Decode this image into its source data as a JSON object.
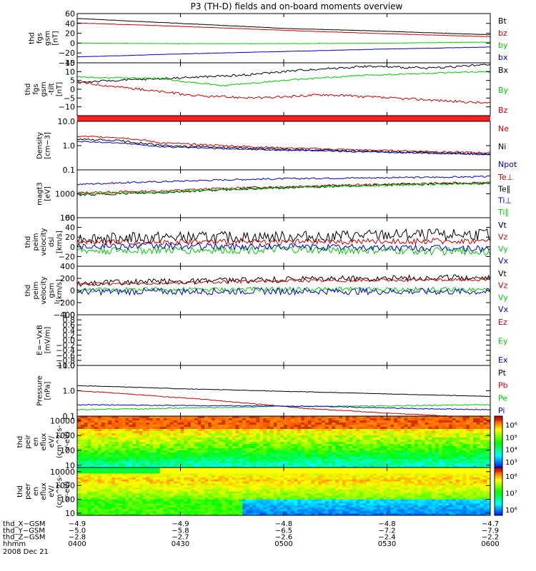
{
  "title": "P3 (TH-D) fields and on-board moments overview",
  "colors": {
    "black": "#000000",
    "red": "#cc0000",
    "green": "#00cc00",
    "blue": "#0000cc",
    "sep": "#ff2020"
  },
  "chart_data": [
    {
      "type": "line",
      "name": "fgs_btotal",
      "ylabel_lines": [
        "thd",
        "fgs",
        "gsm",
        "[nT]"
      ],
      "ylim": [
        -40,
        60
      ],
      "ticks": [
        "60",
        "40",
        "20",
        "0",
        "−20",
        "−40"
      ],
      "tick_values": [
        60,
        40,
        20,
        0,
        -20,
        -40
      ],
      "legend": [
        "Bt",
        "bz",
        "by",
        "bx"
      ],
      "legend_colors": [
        "black",
        "red",
        "green",
        "blue"
      ],
      "series": [
        {
          "name": "Bt",
          "color": "black",
          "x": [
            0,
            0.25,
            0.5,
            0.75,
            1
          ],
          "y": [
            50,
            40,
            30,
            24,
            17
          ],
          "noise": 0.3
        },
        {
          "name": "bz",
          "color": "red",
          "x": [
            0,
            0.25,
            0.5,
            0.75,
            1
          ],
          "y": [
            41,
            34,
            26,
            19,
            13
          ],
          "noise": 0.3
        },
        {
          "name": "by",
          "color": "green",
          "x": [
            0,
            0.25,
            0.5,
            0.75,
            1
          ],
          "y": [
            0,
            -1,
            -1,
            0,
            2
          ],
          "noise": 0.3
        },
        {
          "name": "bx",
          "color": "blue",
          "x": [
            0,
            0.25,
            0.5,
            0.75,
            1
          ],
          "y": [
            -28,
            -22,
            -17,
            -12,
            -8
          ],
          "noise": 0.3
        }
      ]
    },
    {
      "type": "line",
      "name": "fgs_comp",
      "ylabel_lines": [
        "thd",
        "fgs",
        "gsm",
        "-tilt",
        "[nT]"
      ],
      "ylim": [
        -15,
        15
      ],
      "ticks": [
        "15",
        "10",
        "5",
        "0",
        "−5",
        "−10"
      ],
      "tick_values": [
        15,
        10,
        5,
        0,
        -5,
        -10
      ],
      "legend": [
        "Bx",
        "By",
        "Bz"
      ],
      "legend_colors": [
        "black",
        "green",
        "red"
      ],
      "series": [
        {
          "name": "Bx",
          "color": "black",
          "x": [
            0,
            0.2,
            0.4,
            0.55,
            0.7,
            0.85,
            1
          ],
          "y": [
            4,
            6,
            8,
            11,
            13,
            12,
            14
          ],
          "noise": 0.6
        },
        {
          "name": "By",
          "color": "green",
          "x": [
            0,
            0.2,
            0.35,
            0.5,
            0.7,
            0.85,
            1
          ],
          "y": [
            7,
            6,
            2,
            5,
            8,
            9,
            10
          ],
          "noise": 0.4
        },
        {
          "name": "Bz",
          "color": "red",
          "x": [
            0,
            0.15,
            0.3,
            0.45,
            0.6,
            0.75,
            0.85,
            1
          ],
          "y": [
            4,
            0,
            -4,
            -5,
            -3,
            -5,
            -6,
            -8
          ],
          "noise": 0.7
        }
      ]
    },
    {
      "type": "line",
      "name": "density",
      "ylabel_lines": [
        "Density",
        "[cm−3]"
      ],
      "ylim": [
        0.1,
        10
      ],
      "log": true,
      "ticks": [
        "10.0",
        "1.0",
        "0.1"
      ],
      "tick_values": [
        10,
        1,
        0.1
      ],
      "legend": [
        "Ne",
        "Ni",
        "Npot"
      ],
      "legend_colors": [
        "red",
        "black",
        "blue"
      ],
      "series": [
        {
          "name": "Ne",
          "color": "red",
          "x": [
            0,
            0.1,
            0.2,
            0.35,
            0.5,
            0.7,
            1
          ],
          "y": [
            2.4,
            2.2,
            1.3,
            1.0,
            0.8,
            0.65,
            0.5
          ],
          "noise": 0.08
        },
        {
          "name": "Ni",
          "color": "black",
          "x": [
            0,
            0.1,
            0.2,
            0.35,
            0.5,
            0.7,
            1
          ],
          "y": [
            1.8,
            1.6,
            1.0,
            0.85,
            0.7,
            0.58,
            0.45
          ],
          "noise": 0.1
        },
        {
          "name": "Npot",
          "color": "blue",
          "x": [
            0,
            0.1,
            0.2,
            0.35,
            0.5,
            0.7,
            1
          ],
          "y": [
            1.5,
            1.3,
            0.9,
            0.75,
            0.65,
            0.55,
            0.42
          ],
          "noise": 0.06
        }
      ]
    },
    {
      "type": "line",
      "name": "temperature",
      "ylabel_lines": [
        "magt3",
        "[eV]"
      ],
      "ylim": [
        100,
        10000
      ],
      "log": true,
      "ticks": [
        "1000",
        "100"
      ],
      "tick_values": [
        1000,
        100
      ],
      "legend": [
        "Te⊥",
        "Te∥",
        "Ti⊥",
        "Ti∥"
      ],
      "legend_colors": [
        "red",
        "black",
        "blue",
        "green"
      ],
      "series": [
        {
          "name": "Te⊥",
          "color": "red",
          "x": [
            0,
            0.2,
            0.4,
            0.6,
            0.8,
            1
          ],
          "y": [
            1100,
            1300,
            1800,
            2200,
            2600,
            3000
          ],
          "noise": 0.1
        },
        {
          "name": "Te∥",
          "color": "black",
          "x": [
            0,
            0.2,
            0.4,
            0.6,
            0.8,
            1
          ],
          "y": [
            900,
            1100,
            1600,
            2000,
            2500,
            2800
          ],
          "noise": 0.1
        },
        {
          "name": "Ti⊥",
          "color": "blue",
          "x": [
            0,
            0.2,
            0.4,
            0.6,
            0.8,
            1
          ],
          "y": [
            2500,
            3200,
            4000,
            4500,
            4800,
            5200
          ],
          "noise": 0.08
        },
        {
          "name": "Ti∥",
          "color": "green",
          "x": [
            0,
            0.2,
            0.4,
            0.6,
            0.8,
            1
          ],
          "y": [
            1000,
            1200,
            1600,
            2000,
            2400,
            2800
          ],
          "noise": 0.1
        }
      ]
    },
    {
      "type": "line",
      "name": "peim_velocity",
      "ylabel_lines": [
        "thd",
        "peim",
        "velocity",
        "dsl",
        "[km/s]"
      ],
      "ylim": [
        -40,
        60
      ],
      "ticks": [
        "60",
        "40",
        "20",
        "0",
        "−20"
      ],
      "tick_values": [
        60,
        40,
        20,
        0,
        -20
      ],
      "legend": [
        "Vt",
        "Vz",
        "Vy",
        "Vx"
      ],
      "legend_colors": [
        "black",
        "red",
        "green",
        "blue"
      ],
      "series": [
        {
          "name": "Vt",
          "color": "black",
          "x": [
            0,
            0.5,
            0.75,
            1
          ],
          "y": [
            18,
            20,
            24,
            26
          ],
          "noise": 12
        },
        {
          "name": "Vz",
          "color": "red",
          "x": [
            0,
            0.5,
            1
          ],
          "y": [
            10,
            10,
            12
          ],
          "noise": 6
        },
        {
          "name": "Vy",
          "color": "green",
          "x": [
            0,
            0.5,
            1
          ],
          "y": [
            -8,
            -6,
            -10
          ],
          "noise": 8
        },
        {
          "name": "Vx",
          "color": "blue",
          "x": [
            0,
            0.5,
            1
          ],
          "y": [
            2,
            0,
            -4
          ],
          "noise": 7
        }
      ]
    },
    {
      "type": "line",
      "name": "peim_velocity_gsm",
      "ylabel_lines": [
        "thd",
        "peim",
        "velocity",
        "gsm",
        "[km/s]"
      ],
      "ylim": [
        -400,
        400
      ],
      "ticks": [
        "400",
        "200",
        "0",
        "−200",
        "−400"
      ],
      "tick_values": [
        400,
        200,
        0,
        -200,
        -400
      ],
      "legend": [
        "Vt",
        "Vz",
        "Vy",
        "Vx"
      ],
      "legend_colors": [
        "black",
        "red",
        "green",
        "blue"
      ],
      "series": [
        {
          "name": "Vt",
          "color": "black",
          "x": [
            0,
            0.5,
            1
          ],
          "y": [
            120,
            180,
            220
          ],
          "noise": 50
        },
        {
          "name": "Vz",
          "color": "red",
          "x": [
            0,
            0.5,
            1
          ],
          "y": [
            100,
            160,
            180
          ],
          "noise": 25
        },
        {
          "name": "Vy",
          "color": "green",
          "x": [
            0,
            0.5,
            1
          ],
          "y": [
            10,
            20,
            10
          ],
          "noise": 40
        },
        {
          "name": "Vx",
          "color": "blue",
          "x": [
            0,
            0.5,
            1
          ],
          "y": [
            -20,
            -10,
            -20
          ],
          "noise": 55
        }
      ]
    },
    {
      "type": "line",
      "name": "efield",
      "ylabel_lines": [
        "E=−VxB",
        "[mV/m]"
      ],
      "ylim": [
        -1,
        1
      ],
      "ticks": [
        "1.0",
        "0.8",
        "0.6",
        "0.4",
        "0.2",
        "0.0",
        "−0.2",
        "−0.4",
        "−0.6",
        "−0.8",
        "−1.0"
      ],
      "tick_values": [
        1,
        0.8,
        0.6,
        0.4,
        0.2,
        0,
        -0.2,
        -0.4,
        -0.6,
        -0.8,
        -1
      ],
      "legend": [
        "Ez",
        "Ey",
        "Ex"
      ],
      "legend_colors": [
        "red",
        "green",
        "blue"
      ],
      "series": []
    },
    {
      "type": "line",
      "name": "pressure",
      "ylabel_lines": [
        "Pressure",
        "[nPa]"
      ],
      "ylim": [
        0.1,
        10
      ],
      "log": true,
      "ticks": [
        "10.0",
        "1.0",
        "0.1"
      ],
      "tick_values": [
        10,
        1,
        0.1
      ],
      "legend": [
        "Pt",
        "Pb",
        "Pe",
        "Pi"
      ],
      "legend_colors": [
        "black",
        "red",
        "green",
        "blue"
      ],
      "series": [
        {
          "name": "Pt",
          "color": "black",
          "x": [
            0,
            0.25,
            0.5,
            0.75,
            1
          ],
          "y": [
            1.6,
            1.2,
            0.95,
            0.75,
            0.6
          ],
          "noise": 0.02
        },
        {
          "name": "Pb",
          "color": "red",
          "x": [
            0,
            0.2,
            0.4,
            0.55,
            0.75,
            1
          ],
          "y": [
            1.0,
            0.6,
            0.33,
            0.2,
            0.13,
            0.08
          ],
          "noise": 0.03
        },
        {
          "name": "Pe",
          "color": "green",
          "x": [
            0,
            0.2,
            0.5,
            0.8,
            1
          ],
          "y": [
            0.18,
            0.2,
            0.24,
            0.26,
            0.28
          ],
          "noise": 0.05
        },
        {
          "name": "Pi",
          "color": "blue",
          "x": [
            0,
            0.3,
            0.6,
            0.8,
            1
          ],
          "y": [
            0.28,
            0.26,
            0.24,
            0.2,
            0.18
          ],
          "noise": 0.04
        }
      ]
    },
    {
      "type": "heatmap",
      "name": "peir_spectrogram",
      "ylabel_lines": [
        "thd",
        "peir",
        "en",
        "eflux",
        "eV/",
        "(cm^2-s-",
        "sr-eV)"
      ],
      "ylim": [
        7,
        20000
      ],
      "log": true,
      "ticks": [
        "10000",
        "1000",
        "100",
        "10"
      ],
      "tick_values": [
        10000,
        1000,
        100,
        10
      ],
      "colorbar_ticks": [
        "10⁶",
        "10⁵",
        "10⁴",
        "10³"
      ]
    },
    {
      "type": "heatmap",
      "name": "peer_spectrogram",
      "ylabel_lines": [
        "thd",
        "peer",
        "en",
        "eflux",
        "eV/",
        "(cm^2-s-",
        "sr-eV)"
      ],
      "ylim": [
        7,
        20000
      ],
      "log": true,
      "ticks": [
        "10000",
        "1000",
        "100",
        "10"
      ],
      "tick_values": [
        10000,
        1000,
        100,
        10
      ],
      "colorbar_ticks": [
        "10⁸",
        "10⁷",
        "10⁶"
      ]
    }
  ],
  "xaxis": {
    "rows": [
      {
        "label": "thd_X−GSM",
        "values": [
          "−4.9",
          "−4.9",
          "−4.8",
          "−4.8",
          "−4.7"
        ]
      },
      {
        "label": "thd_Y−GSM",
        "values": [
          "−5.0",
          "−5.8",
          "−6.5",
          "−7.2",
          "−7.9"
        ]
      },
      {
        "label": "thd_Z−GSM",
        "values": [
          "−2.8",
          "−2.7",
          "−2.6",
          "−2.4",
          "−2.2"
        ]
      },
      {
        "label": "hhmm",
        "values": [
          "0400",
          "0430",
          "0500",
          "0530",
          "0600"
        ]
      }
    ],
    "date": "2008 Dec 21"
  }
}
